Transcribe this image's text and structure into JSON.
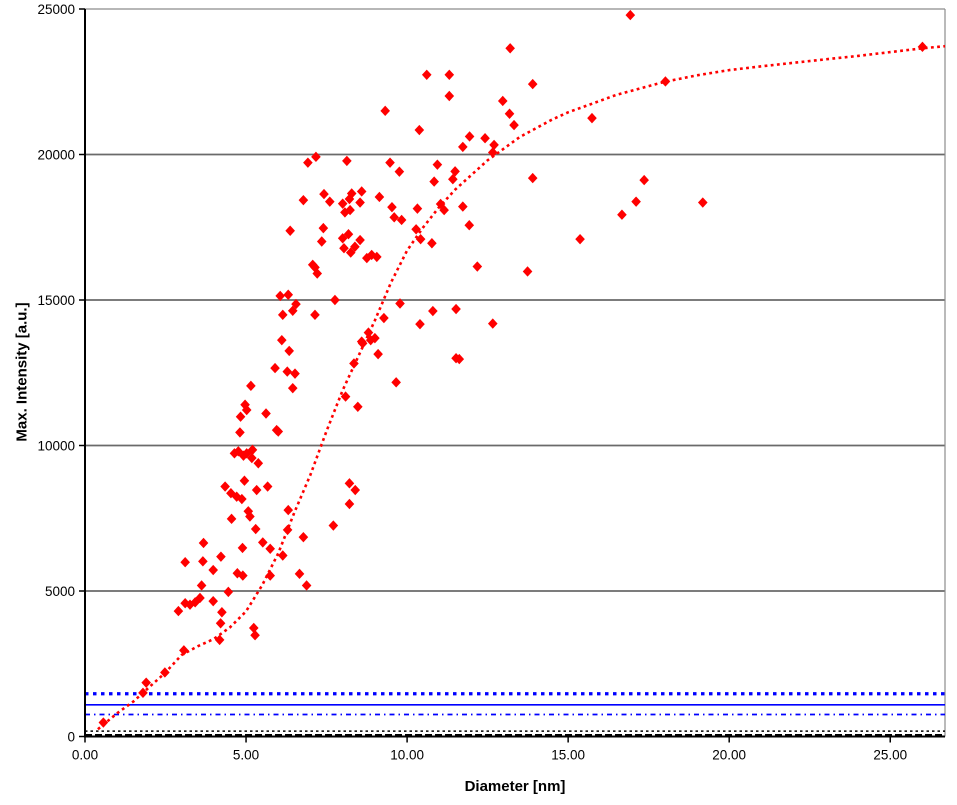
{
  "page": {
    "background": "#ffffff"
  },
  "chart_data": {
    "type": "scatter",
    "title": "",
    "xlabel": "Diameter [nm]",
    "ylabel": "Max. Intensity [a.u.]",
    "xlim": [
      0,
      26.7
    ],
    "ylim": [
      0,
      25000
    ],
    "grid": "horizontal",
    "legend_position": "none",
    "x_ticks": [
      {
        "value": 0,
        "label": "0.00"
      },
      {
        "value": 5,
        "label": "5.00"
      },
      {
        "value": 10,
        "label": "10.00"
      },
      {
        "value": 15,
        "label": "15.00"
      },
      {
        "value": 20,
        "label": "20.00"
      },
      {
        "value": 25,
        "label": "25.00"
      }
    ],
    "y_ticks": [
      {
        "value": 0,
        "label": "0"
      },
      {
        "value": 5000,
        "label": "5000"
      },
      {
        "value": 10000,
        "label": "10000"
      },
      {
        "value": 15000,
        "label": "15000"
      },
      {
        "value": 20000,
        "label": "20000"
      },
      {
        "value": 25000,
        "label": "25000"
      }
    ],
    "gridline_values": [
      5000,
      10000,
      15000,
      20000
    ],
    "marker": {
      "shape": "diamond",
      "color": "#ff0000",
      "size": 10
    },
    "series": [
      {
        "name": "intensity-vs-diameter",
        "points": [
          [
            0.57,
            480
          ],
          [
            1.8,
            1500
          ],
          [
            1.9,
            1850
          ],
          [
            2.48,
            2200
          ],
          [
            3.07,
            2960
          ],
          [
            4.18,
            3320
          ],
          [
            5.24,
            3730
          ],
          [
            5.28,
            3480
          ],
          [
            4.21,
            3890
          ],
          [
            4.25,
            4270
          ],
          [
            2.9,
            4310
          ],
          [
            3.11,
            4580
          ],
          [
            3.26,
            4530
          ],
          [
            3.42,
            4610
          ],
          [
            3.57,
            4760
          ],
          [
            3.98,
            4650
          ],
          [
            4.45,
            4970
          ],
          [
            3.62,
            5190
          ],
          [
            6.88,
            5190
          ],
          [
            3.98,
            5720
          ],
          [
            4.73,
            5610
          ],
          [
            4.9,
            5530
          ],
          [
            5.75,
            5530
          ],
          [
            6.66,
            5590
          ],
          [
            3.11,
            5990
          ],
          [
            3.66,
            6020
          ],
          [
            4.22,
            6180
          ],
          [
            6.14,
            6220
          ],
          [
            5.75,
            6450
          ],
          [
            4.89,
            6480
          ],
          [
            3.68,
            6650
          ],
          [
            5.52,
            6670
          ],
          [
            6.78,
            6850
          ],
          [
            6.29,
            7100
          ],
          [
            5.3,
            7130
          ],
          [
            7.71,
            7250
          ],
          [
            4.55,
            7480
          ],
          [
            5.12,
            7560
          ],
          [
            5.07,
            7740
          ],
          [
            6.31,
            7780
          ],
          [
            8.21,
            7990
          ],
          [
            4.87,
            8160
          ],
          [
            4.71,
            8240
          ],
          [
            4.53,
            8360
          ],
          [
            5.33,
            8470
          ],
          [
            8.39,
            8470
          ],
          [
            4.35,
            8590
          ],
          [
            5.67,
            8590
          ],
          [
            8.21,
            8700
          ],
          [
            4.95,
            8790
          ],
          [
            5.38,
            9390
          ],
          [
            5.18,
            9570
          ],
          [
            4.92,
            9650
          ],
          [
            4.64,
            9730
          ],
          [
            5.02,
            9730
          ],
          [
            4.76,
            9800
          ],
          [
            5.2,
            9850
          ],
          [
            4.81,
            10450
          ],
          [
            6.0,
            10480
          ],
          [
            5.95,
            10530
          ],
          [
            4.83,
            10990
          ],
          [
            5.62,
            11100
          ],
          [
            5.02,
            11220
          ],
          [
            4.97,
            11400
          ],
          [
            8.47,
            11330
          ],
          [
            8.09,
            11680
          ],
          [
            6.45,
            11970
          ],
          [
            5.15,
            12050
          ],
          [
            9.66,
            12170
          ],
          [
            6.28,
            12540
          ],
          [
            6.52,
            12470
          ],
          [
            5.9,
            12660
          ],
          [
            8.35,
            12820
          ],
          [
            11.62,
            12970
          ],
          [
            6.34,
            13250
          ],
          [
            9.1,
            13140
          ],
          [
            11.52,
            13000
          ],
          [
            6.11,
            13620
          ],
          [
            8.59,
            13570
          ],
          [
            8.62,
            13510
          ],
          [
            8.87,
            13620
          ],
          [
            9.0,
            13690
          ],
          [
            8.8,
            13880
          ],
          [
            9.28,
            14380
          ],
          [
            6.14,
            14490
          ],
          [
            7.14,
            14490
          ],
          [
            6.45,
            14630
          ],
          [
            10.8,
            14620
          ],
          [
            11.52,
            14690
          ],
          [
            9.78,
            14880
          ],
          [
            6.06,
            15140
          ],
          [
            6.31,
            15180
          ],
          [
            7.76,
            15000
          ],
          [
            6.55,
            14860
          ],
          [
            12.66,
            14190
          ],
          [
            10.4,
            14170
          ],
          [
            7.35,
            17010
          ],
          [
            6.37,
            17380
          ],
          [
            7.4,
            17470
          ],
          [
            8.0,
            17120
          ],
          [
            8.18,
            17260
          ],
          [
            8.54,
            17060
          ],
          [
            8.04,
            16780
          ],
          [
            8.25,
            16630
          ],
          [
            8.38,
            16830
          ],
          [
            8.75,
            16440
          ],
          [
            8.9,
            16550
          ],
          [
            9.06,
            16480
          ],
          [
            7.07,
            16210
          ],
          [
            7.14,
            16120
          ],
          [
            7.21,
            15910
          ],
          [
            12.18,
            16150
          ],
          [
            13.74,
            15980
          ],
          [
            10.77,
            16950
          ],
          [
            15.37,
            17090
          ],
          [
            11.93,
            17570
          ],
          [
            9.6,
            17840
          ],
          [
            9.83,
            17750
          ],
          [
            10.28,
            17430
          ],
          [
            10.42,
            17090
          ],
          [
            9.53,
            18190
          ],
          [
            6.78,
            18430
          ],
          [
            7.42,
            18640
          ],
          [
            7.6,
            18380
          ],
          [
            8.0,
            18310
          ],
          [
            8.21,
            18470
          ],
          [
            8.28,
            18660
          ],
          [
            8.59,
            18730
          ],
          [
            8.54,
            18350
          ],
          [
            9.14,
            18540
          ],
          [
            8.07,
            18010
          ],
          [
            8.23,
            18090
          ],
          [
            10.32,
            18140
          ],
          [
            9.76,
            19410
          ],
          [
            9.47,
            19720
          ],
          [
            6.92,
            19720
          ],
          [
            7.17,
            19920
          ],
          [
            8.13,
            19780
          ],
          [
            10.61,
            22740
          ],
          [
            11.31,
            22740
          ],
          [
            11.31,
            22010
          ],
          [
            13.9,
            22420
          ],
          [
            12.97,
            21840
          ],
          [
            13.18,
            21400
          ],
          [
            13.32,
            21010
          ],
          [
            15.74,
            21250
          ],
          [
            18.02,
            22510
          ],
          [
            11.94,
            20620
          ],
          [
            12.42,
            20560
          ],
          [
            11.73,
            20260
          ],
          [
            12.7,
            20330
          ],
          [
            12.66,
            20070
          ],
          [
            10.94,
            19650
          ],
          [
            10.84,
            19070
          ],
          [
            11.49,
            19420
          ],
          [
            11.42,
            19150
          ],
          [
            13.9,
            19190
          ],
          [
            17.36,
            19120
          ],
          [
            11.04,
            18300
          ],
          [
            11.15,
            18090
          ],
          [
            11.73,
            18210
          ],
          [
            16.67,
            17930
          ],
          [
            17.11,
            18380
          ],
          [
            19.18,
            18350
          ],
          [
            10.38,
            20840
          ],
          [
            16.93,
            24790
          ],
          [
            13.2,
            23650
          ],
          [
            9.32,
            21500
          ],
          [
            26.0,
            23700
          ]
        ]
      }
    ],
    "trendline": {
      "name": "fit-curve",
      "style": "dotted",
      "color": "#ff0000",
      "points": [
        [
          0.4,
          250
        ],
        [
          1,
          800
        ],
        [
          1.5,
          1200
        ],
        [
          2,
          1700
        ],
        [
          2.5,
          2200
        ],
        [
          3,
          2800
        ],
        [
          3.5,
          3100
        ],
        [
          4,
          3350
        ],
        [
          4.5,
          3750
        ],
        [
          5,
          4300
        ],
        [
          5.5,
          5200
        ],
        [
          6,
          6300
        ],
        [
          6.5,
          7700
        ],
        [
          7,
          9000
        ],
        [
          7.5,
          10500
        ],
        [
          8,
          11900
        ],
        [
          8.5,
          13100
        ],
        [
          9,
          14300
        ],
        [
          9.5,
          15600
        ],
        [
          10,
          16700
        ],
        [
          10.5,
          17500
        ],
        [
          11,
          18200
        ],
        [
          11.5,
          18800
        ],
        [
          12,
          19300
        ],
        [
          12.5,
          19800
        ],
        [
          13,
          20200
        ],
        [
          13.5,
          20600
        ],
        [
          14,
          20900
        ],
        [
          14.5,
          21200
        ],
        [
          15,
          21450
        ],
        [
          15.5,
          21650
        ],
        [
          16,
          21850
        ],
        [
          16.5,
          22050
        ],
        [
          17,
          22200
        ],
        [
          17.5,
          22350
        ],
        [
          18,
          22500
        ],
        [
          19,
          22720
        ],
        [
          20,
          22900
        ],
        [
          21,
          23030
        ],
        [
          22,
          23150
        ],
        [
          23,
          23270
        ],
        [
          24,
          23390
        ],
        [
          25,
          23520
        ],
        [
          26,
          23650
        ],
        [
          26.7,
          23720
        ]
      ]
    },
    "reference_lines": [
      {
        "name": "blue-dotted-upper",
        "value": 1470,
        "color": "#0000ff",
        "style": "dotted-bold"
      },
      {
        "name": "blue-solid",
        "value": 1090,
        "color": "#0000ff",
        "style": "solid"
      },
      {
        "name": "blue-dashed-lower",
        "value": 755,
        "color": "#0000ff",
        "style": "dash-dot"
      },
      {
        "name": "black-dotted",
        "value": 185,
        "color": "#000000",
        "style": "dotted"
      },
      {
        "name": "black-dashed",
        "value": 60,
        "color": "#000000",
        "style": "dashed"
      }
    ],
    "axis_colors": {
      "grid": "#6a6a6a",
      "axis": "#000000",
      "frame": "#8c8c8c"
    }
  }
}
